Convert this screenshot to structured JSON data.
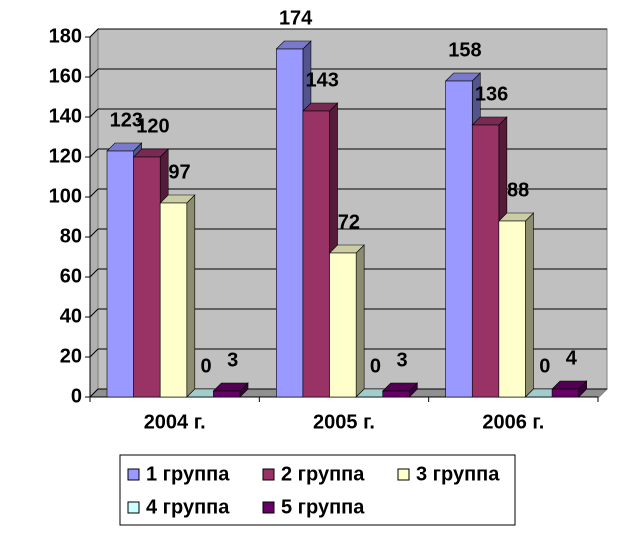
{
  "chart_data": {
    "type": "bar3d",
    "categories": [
      "2004 г.",
      "2005 г.",
      "2006 г."
    ],
    "series": [
      {
        "name": "1 группа",
        "color": "#9999FF",
        "values": [
          123,
          174,
          158
        ]
      },
      {
        "name": "2 группа",
        "color": "#993366",
        "values": [
          120,
          143,
          136
        ]
      },
      {
        "name": "3 группа",
        "color": "#FFFFCC",
        "values": [
          97,
          72,
          88
        ]
      },
      {
        "name": "4 группа",
        "color": "#CCFFFF",
        "values": [
          0,
          0,
          0
        ]
      },
      {
        "name": "5 группа",
        "color": "#660066",
        "values": [
          3,
          3,
          4
        ]
      }
    ],
    "ylim": [
      0,
      180
    ],
    "yticks": [
      0,
      20,
      40,
      60,
      80,
      100,
      120,
      140,
      160,
      180
    ],
    "grid": true,
    "legend": "bottom"
  }
}
